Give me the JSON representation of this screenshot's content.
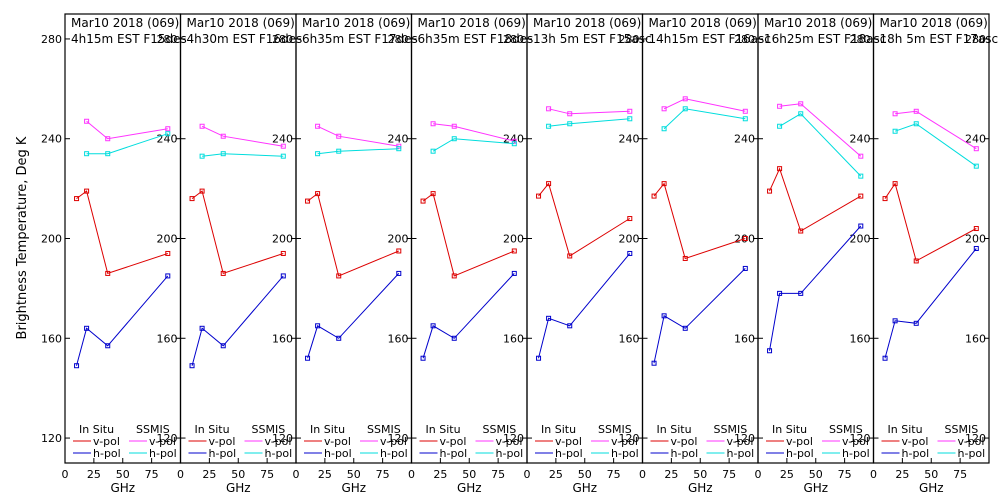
{
  "figure": {
    "ylabel": "Brightness Temperature, Deg K",
    "xlabel": "GHz",
    "legend": {
      "in_situ_title": "In Situ",
      "ssmis_title": "SSMIS",
      "vpol": "v-pol",
      "hpol": "h-pol"
    }
  },
  "colors": {
    "insitu_v": "#dd0000",
    "insitu_h": "#0000cc",
    "ssmis_v": "#ff33ff",
    "ssmis_h": "#00dddd"
  },
  "chart_data": [
    {
      "type": "line",
      "title_line1": "Mar10 2018 (069)",
      "title_line2": "4h15m EST F15des",
      "x": [
        10,
        18.7,
        37,
        89
      ],
      "ylim": [
        110,
        290
      ],
      "xlim": [
        0,
        100
      ],
      "yticks": [
        120,
        160,
        200,
        240,
        280
      ],
      "xticks": [
        0,
        25,
        50,
        75
      ],
      "series": [
        {
          "name": "In Situ v-pol",
          "values": [
            216,
            219,
            186,
            194
          ]
        },
        {
          "name": "In Situ h-pol",
          "values": [
            149,
            164,
            157,
            185
          ]
        },
        {
          "name": "SSMIS v-pol",
          "values": [
            null,
            247,
            240,
            244
          ]
        },
        {
          "name": "SSMIS h-pol",
          "values": [
            null,
            234,
            234,
            242
          ]
        }
      ]
    },
    {
      "type": "line",
      "title_line1": "Mar10 2018 (069)",
      "title_line2": "4h30m EST F16des",
      "x": [
        10,
        18.7,
        37,
        89
      ],
      "ylim": [
        110,
        290
      ],
      "xlim": [
        0,
        100
      ],
      "yticks": [
        120,
        160,
        200,
        240,
        280
      ],
      "xticks": [
        0,
        25,
        50,
        75
      ],
      "series": [
        {
          "name": "In Situ v-pol",
          "values": [
            216,
            219,
            186,
            194
          ]
        },
        {
          "name": "In Situ h-pol",
          "values": [
            149,
            164,
            157,
            185
          ]
        },
        {
          "name": "SSMIS v-pol",
          "values": [
            null,
            245,
            241,
            237
          ]
        },
        {
          "name": "SSMIS h-pol",
          "values": [
            null,
            233,
            234,
            233
          ]
        }
      ]
    },
    {
      "type": "line",
      "title_line1": "Mar10 2018 (069)",
      "title_line2": "6h35m EST F17des",
      "x": [
        10,
        18.7,
        37,
        89
      ],
      "ylim": [
        110,
        290
      ],
      "xlim": [
        0,
        100
      ],
      "yticks": [
        120,
        160,
        200,
        240,
        280
      ],
      "xticks": [
        0,
        25,
        50,
        75
      ],
      "series": [
        {
          "name": "In Situ v-pol",
          "values": [
            215,
            218,
            185,
            195
          ]
        },
        {
          "name": "In Situ h-pol",
          "values": [
            152,
            165,
            160,
            186
          ]
        },
        {
          "name": "SSMIS v-pol",
          "values": [
            null,
            245,
            241,
            237
          ]
        },
        {
          "name": "SSMIS h-pol",
          "values": [
            null,
            234,
            235,
            236
          ]
        }
      ]
    },
    {
      "type": "line",
      "title_line1": "Mar10 2018 (069)",
      "title_line2": "6h35m EST F18des",
      "x": [
        10,
        18.7,
        37,
        89
      ],
      "ylim": [
        110,
        290
      ],
      "xlim": [
        0,
        100
      ],
      "yticks": [
        120,
        160,
        200,
        240,
        280
      ],
      "xticks": [
        0,
        25,
        50,
        75
      ],
      "series": [
        {
          "name": "In Situ v-pol",
          "values": [
            215,
            218,
            185,
            195
          ]
        },
        {
          "name": "In Situ h-pol",
          "values": [
            152,
            165,
            160,
            186
          ]
        },
        {
          "name": "SSMIS v-pol",
          "values": [
            null,
            246,
            245,
            239
          ]
        },
        {
          "name": "SSMIS h-pol",
          "values": [
            null,
            235,
            240,
            238
          ]
        }
      ]
    },
    {
      "type": "line",
      "title_line1": "Mar10 2018 (069)",
      "title_line2": "13h 5m EST F15asc",
      "x": [
        10,
        18.7,
        37,
        89
      ],
      "ylim": [
        110,
        290
      ],
      "xlim": [
        0,
        100
      ],
      "yticks": [
        120,
        160,
        200,
        240,
        280
      ],
      "xticks": [
        0,
        25,
        50,
        75
      ],
      "series": [
        {
          "name": "In Situ v-pol",
          "values": [
            217,
            222,
            193,
            208
          ]
        },
        {
          "name": "In Situ h-pol",
          "values": [
            152,
            168,
            165,
            194
          ]
        },
        {
          "name": "SSMIS v-pol",
          "values": [
            null,
            252,
            250,
            251
          ]
        },
        {
          "name": "SSMIS h-pol",
          "values": [
            null,
            245,
            246,
            248
          ]
        }
      ]
    },
    {
      "type": "line",
      "title_line1": "Mar10 2018 (069)",
      "title_line2": "14h15m EST F16asc",
      "x": [
        10,
        18.7,
        37,
        89
      ],
      "ylim": [
        110,
        290
      ],
      "xlim": [
        0,
        100
      ],
      "yticks": [
        120,
        160,
        200,
        240,
        280
      ],
      "xticks": [
        0,
        25,
        50,
        75
      ],
      "series": [
        {
          "name": "In Situ v-pol",
          "values": [
            217,
            222,
            192,
            200
          ]
        },
        {
          "name": "In Situ h-pol",
          "values": [
            150,
            169,
            164,
            188
          ]
        },
        {
          "name": "SSMIS v-pol",
          "values": [
            null,
            252,
            256,
            251
          ]
        },
        {
          "name": "SSMIS h-pol",
          "values": [
            null,
            244,
            252,
            248
          ]
        }
      ]
    },
    {
      "type": "line",
      "title_line1": "Mar10 2018 (069)",
      "title_line2": "16h25m EST F18asc",
      "x": [
        10,
        18.7,
        37,
        89
      ],
      "ylim": [
        110,
        290
      ],
      "xlim": [
        0,
        100
      ],
      "yticks": [
        120,
        160,
        200,
        240,
        280
      ],
      "xticks": [
        0,
        25,
        50,
        75
      ],
      "series": [
        {
          "name": "In Situ v-pol",
          "values": [
            219,
            228,
            203,
            217
          ]
        },
        {
          "name": "In Situ h-pol",
          "values": [
            155,
            178,
            178,
            205
          ]
        },
        {
          "name": "SSMIS v-pol",
          "values": [
            null,
            253,
            254,
            233
          ]
        },
        {
          "name": "SSMIS h-pol",
          "values": [
            null,
            245,
            250,
            225
          ]
        }
      ]
    },
    {
      "type": "line",
      "title_line1": "Mar10 2018 (069)",
      "title_line2": "18h 5m EST F17asc",
      "x": [
        10,
        18.7,
        37,
        89
      ],
      "ylim": [
        110,
        290
      ],
      "xlim": [
        0,
        100
      ],
      "yticks": [
        120,
        160,
        200,
        240,
        280
      ],
      "xticks": [
        0,
        25,
        50,
        75
      ],
      "series": [
        {
          "name": "In Situ v-pol",
          "values": [
            216,
            222,
            191,
            204
          ]
        },
        {
          "name": "In Situ h-pol",
          "values": [
            152,
            167,
            166,
            196
          ]
        },
        {
          "name": "SSMIS v-pol",
          "values": [
            null,
            250,
            251,
            236
          ]
        },
        {
          "name": "SSMIS h-pol",
          "values": [
            null,
            243,
            246,
            229
          ]
        }
      ]
    }
  ]
}
